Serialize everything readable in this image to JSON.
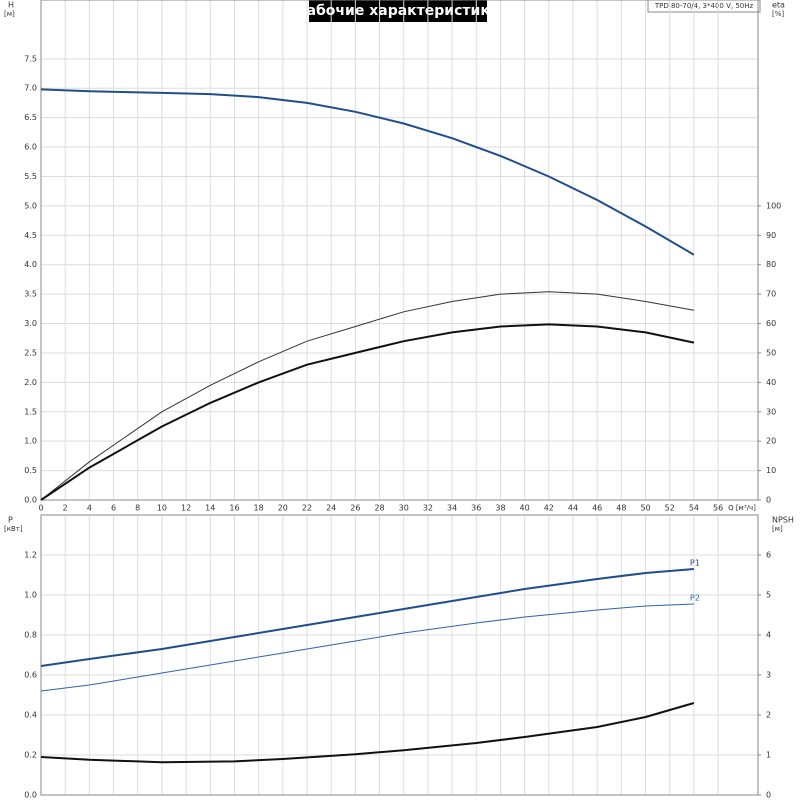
{
  "title": "Рабочие характеристики",
  "info": "TPD 80-70/4, 3*400 V, 50Hz",
  "chart_data": [
    {
      "type": "line",
      "ylabel": [
        "H",
        "[м]"
      ],
      "y2label": [
        "eta",
        "[%]"
      ],
      "xlabel": "Q [м³/ч]",
      "xlim": [
        0,
        59.3
      ],
      "xticks": [
        0,
        2,
        4,
        6,
        8,
        10,
        12,
        14,
        16,
        18,
        20,
        22,
        24,
        26,
        28,
        30,
        32,
        34,
        36,
        38,
        40,
        42,
        44,
        46,
        48,
        50,
        52,
        54,
        56
      ],
      "ylim": [
        0,
        8.5
      ],
      "yticks": [
        {
          "value": 0,
          "label": "0.0"
        },
        {
          "value": 0.5,
          "label": "0.5"
        },
        {
          "value": 1,
          "label": "1.0"
        },
        {
          "value": 1.5,
          "label": "1.5"
        },
        {
          "value": 2,
          "label": "2.0"
        },
        {
          "value": 2.5,
          "label": "2.5"
        },
        {
          "value": 3,
          "label": "3.0"
        },
        {
          "value": 3.5,
          "label": "3.5"
        },
        {
          "value": 4,
          "label": "4.0"
        },
        {
          "value": 4.5,
          "label": "4.5"
        },
        {
          "value": 5,
          "label": "5.0"
        },
        {
          "value": 5.5,
          "label": "5.5"
        },
        {
          "value": 6,
          "label": "6.0"
        },
        {
          "value": 6.5,
          "label": "6.5"
        },
        {
          "value": 7,
          "label": "7.0"
        },
        {
          "value": 7.5,
          "label": "7.5"
        }
      ],
      "y2lim": [
        0,
        170
      ],
      "y2ticks": [
        0,
        10,
        20,
        30,
        40,
        50,
        60,
        70,
        80,
        90,
        100
      ],
      "x": [
        0,
        4,
        10,
        14,
        18,
        22,
        26,
        30,
        34,
        38,
        42,
        46,
        50,
        54
      ],
      "series": [
        {
          "color": "#1f4e8c",
          "line_width": 2,
          "values": [
            6.98,
            6.95,
            6.92,
            6.9,
            6.85,
            6.75,
            6.6,
            6.4,
            6.15,
            5.85,
            5.5,
            5.1,
            4.65,
            4.17
          ]
        },
        {
          "color": "#333333",
          "line_width": 1,
          "axis": "y2",
          "values": [
            0,
            13,
            30,
            39,
            47,
            54,
            59,
            64,
            67.5,
            70,
            70.8,
            70,
            67.5,
            64.5
          ]
        },
        {
          "color": "#111111",
          "line_width": 2,
          "axis": "y2",
          "values": [
            0,
            11,
            25,
            33,
            40,
            46,
            50,
            54,
            57,
            59,
            59.7,
            59,
            57,
            53.5
          ]
        }
      ]
    },
    {
      "type": "line",
      "ylabel": [
        "P",
        "[кВт]"
      ],
      "y2label": [
        "NPSH",
        "[м]"
      ],
      "xlim": [
        0,
        59.3
      ],
      "xticks": [
        0,
        2,
        4,
        6,
        8,
        10,
        12,
        14,
        16,
        18,
        20,
        22,
        24,
        26,
        28,
        30,
        32,
        34,
        36,
        38,
        40,
        42,
        44,
        46,
        48,
        50,
        52,
        54,
        56
      ],
      "ylim": [
        0,
        1.4
      ],
      "yticks": [
        {
          "value": 0,
          "label": "0.0"
        },
        {
          "value": 0.2,
          "label": "0.2"
        },
        {
          "value": 0.4,
          "label": "0.4"
        },
        {
          "value": 0.6,
          "label": "0.6"
        },
        {
          "value": 0.8,
          "label": "0.8"
        },
        {
          "value": 1,
          "label": "1.0"
        },
        {
          "value": 1.2,
          "label": "1.2"
        }
      ],
      "y2lim": [
        0,
        7
      ],
      "y2ticks": [
        0,
        1,
        2,
        3,
        4,
        5,
        6
      ],
      "x": [
        0,
        4,
        10,
        16,
        20,
        26,
        30,
        36,
        40,
        46,
        50,
        54
      ],
      "series": [
        {
          "name": "P1",
          "color": "#1f4e8c",
          "line_width": 2,
          "values": [
            0.645,
            0.68,
            0.73,
            0.79,
            0.83,
            0.89,
            0.93,
            0.99,
            1.03,
            1.08,
            1.11,
            1.13
          ]
        },
        {
          "name": "P2",
          "color": "#2f62a8",
          "line_width": 1,
          "values": [
            0.52,
            0.55,
            0.61,
            0.67,
            0.71,
            0.77,
            0.81,
            0.86,
            0.89,
            0.925,
            0.945,
            0.955
          ]
        },
        {
          "color": "#111111",
          "line_width": 2,
          "axis": "y2",
          "values": [
            0.95,
            0.88,
            0.82,
            0.84,
            0.9,
            1.02,
            1.12,
            1.3,
            1.45,
            1.7,
            1.95,
            2.3
          ]
        }
      ]
    }
  ]
}
